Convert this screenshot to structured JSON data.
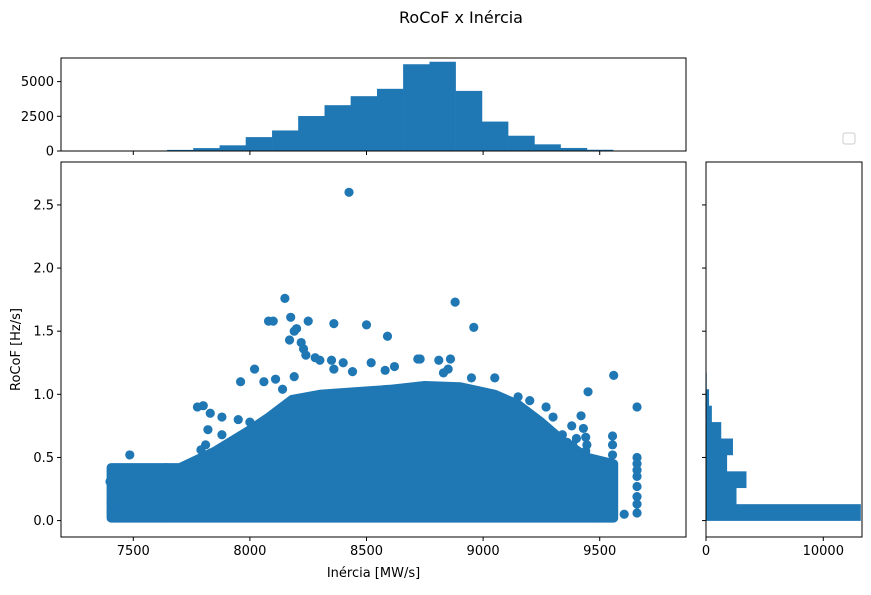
{
  "figure": {
    "title": "RoCoF x Inércia",
    "bar_color": "#1f77b4",
    "legend_box": "empty"
  },
  "chart_data": [
    {
      "name": "top-histogram",
      "type": "bar",
      "orientation": "vertical",
      "xlim": [
        7190,
        9870
      ],
      "ylim": [
        0,
        6700
      ],
      "y_ticks": [
        0,
        2500,
        5000
      ],
      "y_tick_labels": [
        "0",
        "2500",
        "5000"
      ],
      "x_ticks": [
        7500,
        8000,
        8500,
        9000,
        9500
      ],
      "bins": [
        {
          "x0": 7530,
          "x1": 7645,
          "count": 10
        },
        {
          "x0": 7645,
          "x1": 7757,
          "count": 80
        },
        {
          "x0": 7757,
          "x1": 7870,
          "count": 210
        },
        {
          "x0": 7870,
          "x1": 7982,
          "count": 410
        },
        {
          "x0": 7982,
          "x1": 8095,
          "count": 1000
        },
        {
          "x0": 8095,
          "x1": 8207,
          "count": 1480
        },
        {
          "x0": 8207,
          "x1": 8320,
          "count": 2520
        },
        {
          "x0": 8320,
          "x1": 8432,
          "count": 3300
        },
        {
          "x0": 8432,
          "x1": 8545,
          "count": 3950
        },
        {
          "x0": 8545,
          "x1": 8657,
          "count": 4480
        },
        {
          "x0": 8657,
          "x1": 8770,
          "count": 6250
        },
        {
          "x0": 8770,
          "x1": 8882,
          "count": 6430
        },
        {
          "x0": 8882,
          "x1": 8995,
          "count": 4330
        },
        {
          "x0": 8995,
          "x1": 9107,
          "count": 2120
        },
        {
          "x0": 9107,
          "x1": 9220,
          "count": 1100
        },
        {
          "x0": 9220,
          "x1": 9332,
          "count": 480
        },
        {
          "x0": 9332,
          "x1": 9445,
          "count": 220
        },
        {
          "x0": 9445,
          "x1": 9557,
          "count": 90
        },
        {
          "x0": 9557,
          "x1": 9670,
          "count": 30
        }
      ]
    },
    {
      "name": "scatter",
      "type": "scatter",
      "xlabel": "Inércia [MW/s]",
      "ylabel": "RoCoF [Hz/s]",
      "xlim": [
        7190,
        9870
      ],
      "ylim": [
        -0.13,
        2.84
      ],
      "x_ticks": [
        7500,
        8000,
        8500,
        9000,
        9500
      ],
      "x_tick_labels": [
        "7500",
        "8000",
        "8500",
        "9000",
        "9500"
      ],
      "y_ticks": [
        0.0,
        0.5,
        1.0,
        1.5,
        2.0,
        2.5
      ],
      "y_tick_labels": [
        "0.0",
        "0.5",
        "1.0",
        "1.5",
        "2.0",
        "2.5"
      ],
      "dense_region": [
        [
          7405,
          0.02
        ],
        [
          7405,
          0.42
        ],
        [
          7700,
          0.42
        ],
        [
          7850,
          0.55
        ],
        [
          8000,
          0.72
        ],
        [
          8080,
          0.82
        ],
        [
          8180,
          0.96
        ],
        [
          8300,
          1.0
        ],
        [
          8450,
          1.02
        ],
        [
          8600,
          1.04
        ],
        [
          8750,
          1.07
        ],
        [
          8900,
          1.06
        ],
        [
          9050,
          1.0
        ],
        [
          9150,
          0.92
        ],
        [
          9250,
          0.78
        ],
        [
          9350,
          0.62
        ],
        [
          9450,
          0.5
        ],
        [
          9560,
          0.45
        ],
        [
          9560,
          0.02
        ]
      ],
      "points": [
        [
          8425,
          2.6
        ],
        [
          8150,
          1.76
        ],
        [
          8880,
          1.73
        ],
        [
          8175,
          1.61
        ],
        [
          8080,
          1.58
        ],
        [
          8100,
          1.58
        ],
        [
          8250,
          1.58
        ],
        [
          8360,
          1.56
        ],
        [
          8500,
          1.55
        ],
        [
          8960,
          1.53
        ],
        [
          8200,
          1.52
        ],
        [
          8190,
          1.5
        ],
        [
          8590,
          1.46
        ],
        [
          8170,
          1.43
        ],
        [
          8220,
          1.41
        ],
        [
          8230,
          1.36
        ],
        [
          8240,
          1.31
        ],
        [
          8280,
          1.29
        ],
        [
          8300,
          1.27
        ],
        [
          8350,
          1.27
        ],
        [
          8400,
          1.25
        ],
        [
          8520,
          1.25
        ],
        [
          8620,
          1.22
        ],
        [
          8720,
          1.28
        ],
        [
          8730,
          1.28
        ],
        [
          8810,
          1.27
        ],
        [
          8860,
          1.28
        ],
        [
          8850,
          1.2
        ],
        [
          8580,
          1.19
        ],
        [
          8830,
          1.17
        ],
        [
          8950,
          1.13
        ],
        [
          9050,
          1.13
        ],
        [
          8020,
          1.2
        ],
        [
          8060,
          1.1
        ],
        [
          8110,
          1.12
        ],
        [
          7960,
          1.1
        ],
        [
          8140,
          1.04
        ],
        [
          8190,
          1.14
        ],
        [
          8360,
          1.2
        ],
        [
          8440,
          1.18
        ],
        [
          9560,
          1.15
        ],
        [
          9450,
          1.02
        ],
        [
          9660,
          0.9
        ],
        [
          9420,
          0.83
        ],
        [
          9380,
          0.75
        ],
        [
          9300,
          0.82
        ],
        [
          9270,
          0.9
        ],
        [
          9200,
          0.95
        ],
        [
          9150,
          0.98
        ],
        [
          7800,
          0.91
        ],
        [
          7775,
          0.9
        ],
        [
          7830,
          0.85
        ],
        [
          7880,
          0.82
        ],
        [
          7950,
          0.8
        ],
        [
          8000,
          0.78
        ],
        [
          8040,
          0.76
        ],
        [
          7820,
          0.72
        ],
        [
          7880,
          0.68
        ],
        [
          7930,
          0.63
        ],
        [
          7990,
          0.6
        ],
        [
          7810,
          0.6
        ],
        [
          7790,
          0.56
        ],
        [
          7850,
          0.52
        ],
        [
          7900,
          0.55
        ],
        [
          7640,
          0.42
        ],
        [
          7690,
          0.41
        ],
        [
          7745,
          0.43
        ],
        [
          7600,
          0.38
        ],
        [
          7550,
          0.37
        ],
        [
          7490,
          0.37
        ],
        [
          7440,
          0.39
        ],
        [
          7410,
          0.35
        ],
        [
          7400,
          0.31
        ],
        [
          7420,
          0.27
        ],
        [
          7460,
          0.3
        ],
        [
          7520,
          0.32
        ],
        [
          7580,
          0.31
        ],
        [
          7610,
          0.26
        ],
        [
          7650,
          0.28
        ],
        [
          7700,
          0.25
        ],
        [
          7760,
          0.3
        ],
        [
          7720,
          0.37
        ],
        [
          7690,
          0.33
        ],
        [
          7485,
          0.52
        ],
        [
          7490,
          0.29
        ],
        [
          7480,
          0.24
        ],
        [
          7405,
          0.14
        ],
        [
          7450,
          0.12
        ],
        [
          7405,
          0.07
        ],
        [
          7430,
          0.04
        ],
        [
          7625,
          0.12
        ],
        [
          7630,
          0.08
        ],
        [
          7625,
          0.04
        ],
        [
          7770,
          0.15
        ],
        [
          7780,
          0.1
        ],
        [
          7800,
          0.04
        ],
        [
          7720,
          0.18
        ],
        [
          7855,
          0.05
        ],
        [
          7720,
          0.2
        ],
        [
          7760,
          0.34
        ],
        [
          9660,
          0.5
        ],
        [
          9660,
          0.45
        ],
        [
          9660,
          0.4
        ],
        [
          9660,
          0.35
        ],
        [
          9660,
          0.27
        ],
        [
          9660,
          0.19
        ],
        [
          9660,
          0.13
        ],
        [
          9660,
          0.06
        ],
        [
          9555,
          0.67
        ],
        [
          9555,
          0.6
        ],
        [
          9555,
          0.52
        ],
        [
          9555,
          0.45
        ],
        [
          9555,
          0.38
        ],
        [
          9555,
          0.3
        ],
        [
          9555,
          0.22
        ],
        [
          9555,
          0.14
        ],
        [
          9555,
          0.07
        ],
        [
          9530,
          0.35
        ],
        [
          9525,
          0.28
        ],
        [
          9530,
          0.2
        ],
        [
          9605,
          0.05
        ],
        [
          9430,
          0.73
        ],
        [
          9440,
          0.66
        ],
        [
          9445,
          0.6
        ],
        [
          9440,
          0.55
        ],
        [
          9430,
          0.48
        ],
        [
          9440,
          0.42
        ],
        [
          9445,
          0.36
        ],
        [
          9440,
          0.3
        ],
        [
          9435,
          0.22
        ],
        [
          9440,
          0.14
        ],
        [
          9430,
          0.08
        ],
        [
          9420,
          0.45
        ],
        [
          9410,
          0.37
        ],
        [
          9400,
          0.65
        ],
        [
          9385,
          0.6
        ],
        [
          9390,
          0.52
        ],
        [
          9380,
          0.47
        ],
        [
          9470,
          0.05
        ],
        [
          9480,
          0.04
        ],
        [
          9340,
          0.68
        ],
        [
          9320,
          0.55
        ],
        [
          9310,
          0.5
        ],
        [
          9300,
          0.42
        ],
        [
          9305,
          0.36
        ],
        [
          9300,
          0.28
        ],
        [
          9310,
          0.22
        ],
        [
          9290,
          0.16
        ],
        [
          9330,
          0.1
        ],
        [
          9360,
          0.62
        ],
        [
          9520,
          0.05
        ],
        [
          9500,
          0.04
        ]
      ]
    },
    {
      "name": "right-histogram",
      "type": "bar",
      "orientation": "horizontal",
      "xlim": [
        0,
        13300
      ],
      "ylim": [
        -0.13,
        2.84
      ],
      "x_ticks": [
        0,
        10000
      ],
      "x_tick_labels": [
        "0",
        "10000"
      ],
      "bins": [
        {
          "y0": 0.0,
          "y1": 0.13,
          "count": 13200
        },
        {
          "y0": 0.13,
          "y1": 0.26,
          "count": 2600
        },
        {
          "y0": 0.26,
          "y1": 0.39,
          "count": 3450
        },
        {
          "y0": 0.39,
          "y1": 0.52,
          "count": 1800
        },
        {
          "y0": 0.52,
          "y1": 0.65,
          "count": 2300
        },
        {
          "y0": 0.65,
          "y1": 0.78,
          "count": 1300
        },
        {
          "y0": 0.78,
          "y1": 0.91,
          "count": 500
        },
        {
          "y0": 0.91,
          "y1": 1.04,
          "count": 260
        },
        {
          "y0": 1.04,
          "y1": 1.17,
          "count": 60
        },
        {
          "y0": 1.17,
          "y1": 1.3,
          "count": 15
        }
      ]
    }
  ]
}
